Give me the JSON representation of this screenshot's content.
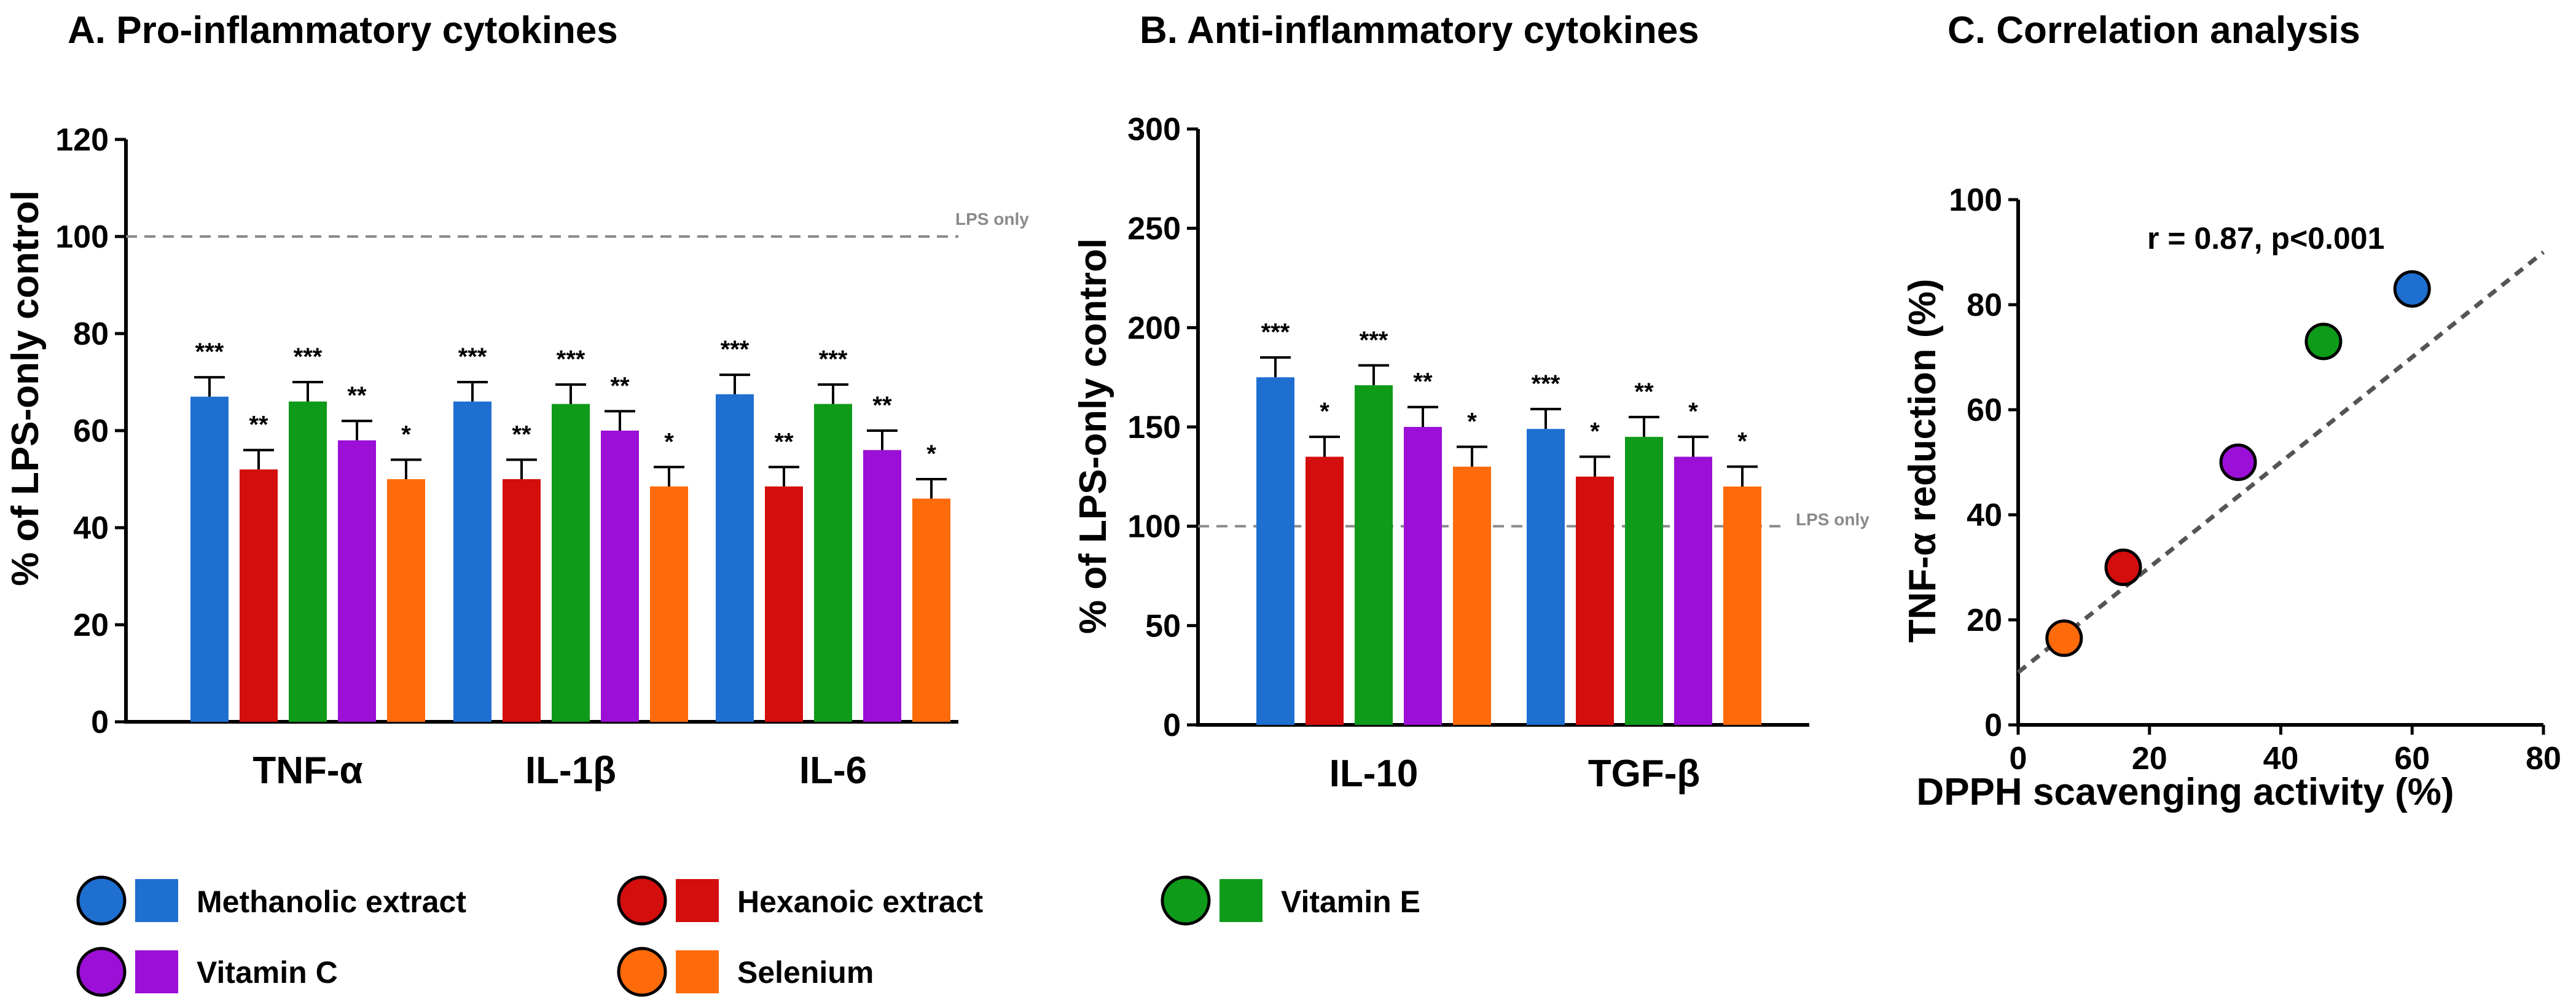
{
  "series_colors": {
    "Methanolic extract": "#1f6fd1",
    "Hexanoic extract": "#d40d0d",
    "Vitamin E": "#0f9b1a",
    "Vitamin C": "#9b0fd6",
    "Selenium": "#ff6a0a"
  },
  "legend": [
    "Methanolic extract",
    "Hexanoic extract",
    "Vitamin E",
    "Vitamin C",
    "Selenium"
  ],
  "chart_data": [
    {
      "type": "bar",
      "title": "A. Pro-inflammatory cytokines",
      "ylabel": "% of LPS-only control",
      "xlabel": "",
      "ylim": [
        0,
        120
      ],
      "yticks": [
        0,
        20,
        40,
        60,
        80,
        100,
        120
      ],
      "reference_line": {
        "value": 100,
        "label": "LPS only"
      },
      "categories": [
        "TNF-α",
        "IL-1β",
        "IL-6"
      ],
      "series": [
        {
          "name": "Methanolic extract",
          "values": [
            67,
            66,
            67.5
          ],
          "errors": [
            4,
            4,
            4
          ],
          "sig": [
            "***",
            "***",
            "***"
          ]
        },
        {
          "name": "Hexanoic extract",
          "values": [
            52,
            50,
            48.5
          ],
          "errors": [
            4,
            4,
            4
          ],
          "sig": [
            "**",
            "**",
            "**"
          ]
        },
        {
          "name": "Vitamin E",
          "values": [
            66,
            65.5,
            65.5
          ],
          "errors": [
            4,
            4,
            4
          ],
          "sig": [
            "***",
            "***",
            "***"
          ]
        },
        {
          "name": "Vitamin C",
          "values": [
            58,
            60,
            56
          ],
          "errors": [
            4,
            4,
            4
          ],
          "sig": [
            "**",
            "**",
            "**"
          ]
        },
        {
          "name": "Selenium",
          "values": [
            50,
            48.5,
            46
          ],
          "errors": [
            4,
            4,
            4
          ],
          "sig": [
            "*",
            "*",
            "*"
          ]
        }
      ]
    },
    {
      "type": "bar",
      "title": "B. Anti-inflammatory cytokines",
      "ylabel": "% of LPS-only control",
      "xlabel": "",
      "ylim": [
        0,
        300
      ],
      "yticks": [
        0,
        50,
        100,
        150,
        200,
        250,
        300
      ],
      "reference_line": {
        "value": 100,
        "label": "LPS only"
      },
      "categories": [
        "IL-10",
        "TGF-β"
      ],
      "series": [
        {
          "name": "Methanolic extract",
          "values": [
            175,
            149
          ],
          "errors": [
            10,
            10
          ],
          "sig": [
            "***",
            "***"
          ]
        },
        {
          "name": "Hexanoic extract",
          "values": [
            135,
            125
          ],
          "errors": [
            10,
            10
          ],
          "sig": [
            "*",
            "*"
          ]
        },
        {
          "name": "Vitamin E",
          "values": [
            171,
            145
          ],
          "errors": [
            10,
            10
          ],
          "sig": [
            "***",
            "**"
          ]
        },
        {
          "name": "Vitamin C",
          "values": [
            150,
            135
          ],
          "errors": [
            10,
            10
          ],
          "sig": [
            "**",
            "*"
          ]
        },
        {
          "name": "Selenium",
          "values": [
            130,
            120
          ],
          "errors": [
            10,
            10
          ],
          "sig": [
            "*",
            "*"
          ]
        }
      ]
    },
    {
      "type": "scatter",
      "title": "C. Correlation analysis",
      "xlabel": "DPPH scavenging activity (%)",
      "ylabel": "TNF-α reduction (%)",
      "xlim": [
        0,
        80
      ],
      "ylim": [
        0,
        100
      ],
      "xticks": [
        0,
        20,
        40,
        60,
        80
      ],
      "yticks": [
        0,
        20,
        40,
        60,
        80,
        100
      ],
      "annotation": "r = 0.87, p<0.001",
      "points": [
        {
          "name": "Selenium",
          "x": 7,
          "y": 16.5
        },
        {
          "name": "Hexanoic extract",
          "x": 16,
          "y": 30
        },
        {
          "name": "Vitamin C",
          "x": 33.5,
          "y": 50
        },
        {
          "name": "Vitamin E",
          "x": 46.5,
          "y": 73
        },
        {
          "name": "Methanolic extract",
          "x": 60,
          "y": 83
        }
      ],
      "trendline": {
        "x0": 0,
        "y0": 10,
        "x1": 80,
        "y1": 90
      }
    }
  ]
}
